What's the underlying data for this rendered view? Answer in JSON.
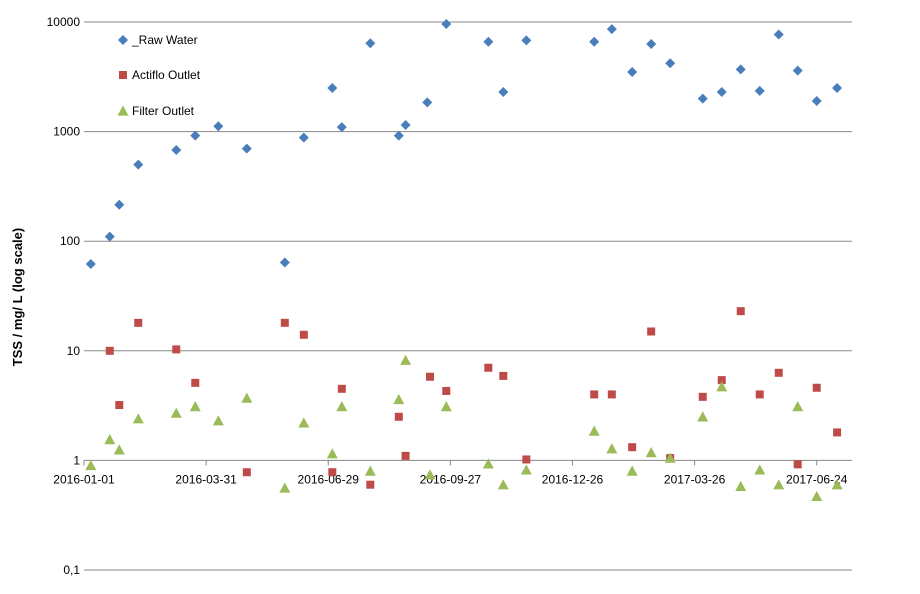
{
  "chart_data": {
    "type": "scatter",
    "title": "",
    "xlabel": "",
    "ylabel": "TSS / mg/ L (log scale)",
    "yscale": "log",
    "ylim": [
      0.1,
      10000
    ],
    "y_ticks": [
      {
        "value": 0.1,
        "label": "0,1"
      },
      {
        "value": 1,
        "label": "1"
      },
      {
        "value": 10,
        "label": "10"
      },
      {
        "value": 100,
        "label": "100"
      },
      {
        "value": 1000,
        "label": "1000"
      },
      {
        "value": 10000,
        "label": "10000"
      }
    ],
    "xlim": [
      "2016-01-01",
      "2017-07-20"
    ],
    "x_ticks": [
      "2016-01-01",
      "2016-03-31",
      "2016-06-29",
      "2016-09-27",
      "2016-12-26",
      "2017-03-26",
      "2017-06-24"
    ],
    "grid": "horizontal",
    "legend_position": "top-left",
    "series": [
      {
        "name": "_Raw Water",
        "marker": "diamond",
        "color": "#4a7ebb",
        "points": [
          [
            "2016-01-06",
            62
          ],
          [
            "2016-01-20",
            110
          ],
          [
            "2016-01-27",
            215
          ],
          [
            "2016-02-10",
            500
          ],
          [
            "2016-03-09",
            680
          ],
          [
            "2016-03-23",
            920
          ],
          [
            "2016-04-09",
            1120
          ],
          [
            "2016-04-30",
            700
          ],
          [
            "2016-05-28",
            64
          ],
          [
            "2016-06-11",
            880
          ],
          [
            "2016-07-02",
            2500
          ],
          [
            "2016-07-09",
            1100
          ],
          [
            "2016-07-30",
            6400
          ],
          [
            "2016-08-20",
            920
          ],
          [
            "2016-08-25",
            1150
          ],
          [
            "2016-09-10",
            1850
          ],
          [
            "2016-09-24",
            9600
          ],
          [
            "2016-10-25",
            6600
          ],
          [
            "2016-11-05",
            2300
          ],
          [
            "2016-11-22",
            6800
          ],
          [
            "2017-01-11",
            6600
          ],
          [
            "2017-01-24",
            8600
          ],
          [
            "2017-02-08",
            3500
          ],
          [
            "2017-02-22",
            6300
          ],
          [
            "2017-03-08",
            4200
          ],
          [
            "2017-04-01",
            2000
          ],
          [
            "2017-04-15",
            2300
          ],
          [
            "2017-04-29",
            3700
          ],
          [
            "2017-05-13",
            2350
          ],
          [
            "2017-05-27",
            7700
          ],
          [
            "2017-06-10",
            3600
          ],
          [
            "2017-06-24",
            1900
          ],
          [
            "2017-07-09",
            2500
          ]
        ]
      },
      {
        "name": "Actiflo Outlet",
        "marker": "square",
        "color": "#be4b48",
        "points": [
          [
            "2016-01-20",
            10
          ],
          [
            "2016-01-27",
            3.2
          ],
          [
            "2016-02-10",
            18
          ],
          [
            "2016-03-09",
            10.3
          ],
          [
            "2016-03-23",
            5.1
          ],
          [
            "2016-04-30",
            0.78
          ],
          [
            "2016-05-28",
            18
          ],
          [
            "2016-06-11",
            14
          ],
          [
            "2016-07-02",
            0.78
          ],
          [
            "2016-07-09",
            4.5
          ],
          [
            "2016-07-30",
            0.6
          ],
          [
            "2016-08-20",
            2.5
          ],
          [
            "2016-08-25",
            1.1
          ],
          [
            "2016-09-12",
            5.8
          ],
          [
            "2016-09-24",
            4.3
          ],
          [
            "2016-10-25",
            7
          ],
          [
            "2016-11-05",
            5.9
          ],
          [
            "2016-11-22",
            1.02
          ],
          [
            "2017-01-11",
            4
          ],
          [
            "2017-01-24",
            4
          ],
          [
            "2017-02-08",
            1.32
          ],
          [
            "2017-02-22",
            15
          ],
          [
            "2017-03-08",
            1.05
          ],
          [
            "2017-04-01",
            3.8
          ],
          [
            "2017-04-15",
            5.4
          ],
          [
            "2017-04-29",
            23
          ],
          [
            "2017-05-13",
            4
          ],
          [
            "2017-05-27",
            6.3
          ],
          [
            "2017-06-10",
            0.92
          ],
          [
            "2017-06-24",
            4.6
          ],
          [
            "2017-07-09",
            1.8
          ]
        ]
      },
      {
        "name": "Filter Outlet",
        "marker": "triangle",
        "color": "#9bbb59",
        "points": [
          [
            "2016-01-06",
            0.9
          ],
          [
            "2016-01-20",
            1.55
          ],
          [
            "2016-01-27",
            1.25
          ],
          [
            "2016-02-10",
            2.4
          ],
          [
            "2016-03-09",
            2.7
          ],
          [
            "2016-03-23",
            3.1
          ],
          [
            "2016-04-09",
            2.3
          ],
          [
            "2016-04-30",
            3.7
          ],
          [
            "2016-05-28",
            0.56
          ],
          [
            "2016-06-11",
            2.2
          ],
          [
            "2016-07-02",
            1.15
          ],
          [
            "2016-07-09",
            3.1
          ],
          [
            "2016-07-30",
            0.8
          ],
          [
            "2016-08-20",
            3.6
          ],
          [
            "2016-08-25",
            8.2
          ],
          [
            "2016-09-12",
            0.74
          ],
          [
            "2016-09-24",
            3.1
          ],
          [
            "2016-10-25",
            0.93
          ],
          [
            "2016-11-05",
            0.6
          ],
          [
            "2016-11-22",
            0.82
          ],
          [
            "2017-01-11",
            1.85
          ],
          [
            "2017-01-24",
            1.28
          ],
          [
            "2017-02-08",
            0.8
          ],
          [
            "2017-02-22",
            1.18
          ],
          [
            "2017-03-08",
            1.05
          ],
          [
            "2017-04-01",
            2.5
          ],
          [
            "2017-04-15",
            4.7
          ],
          [
            "2017-04-29",
            0.58
          ],
          [
            "2017-05-13",
            0.82
          ],
          [
            "2017-05-27",
            0.6
          ],
          [
            "2017-06-10",
            3.1
          ],
          [
            "2017-06-24",
            0.47
          ],
          [
            "2017-07-09",
            0.6
          ]
        ]
      }
    ]
  }
}
